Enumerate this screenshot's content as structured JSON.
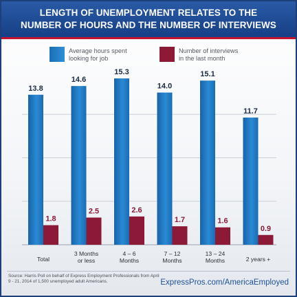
{
  "header": {
    "title_line1": "LENGTH OF UNEMPLOYMENT RELATES TO THE",
    "title_line2": "NUMBER OF HOURS AND THE NUMBER OF INTERVIEWS"
  },
  "legend": {
    "hours": "Average hours spent\nlooking for job",
    "interviews": "Number of interviews\nin the last month"
  },
  "colors": {
    "hours": "#1f78c1",
    "interviews": "#8c1a36",
    "hours_label": "#1a2a44",
    "interviews_label": "#8c1a36",
    "header": "#1d4a93",
    "accent_line": "#c41230"
  },
  "chart_data": {
    "type": "bar",
    "categories": [
      "Total",
      "3 Months\nor less",
      "4 – 6\nMonths",
      "7 – 12\nMonths",
      "13 – 24\nMonths",
      "2 years +"
    ],
    "series": [
      {
        "name": "Average hours spent looking for job",
        "values": [
          13.8,
          14.6,
          15.3,
          14.0,
          15.1,
          11.7
        ],
        "labels": [
          "13.8",
          "14.6",
          "15.3",
          "14.0",
          "15.1",
          "11.7"
        ]
      },
      {
        "name": "Number of interviews in the last month",
        "values": [
          1.8,
          2.5,
          2.6,
          1.7,
          1.6,
          0.9
        ],
        "labels": [
          "1.8",
          "2.5",
          "2.6",
          "1.7",
          "1.6",
          "0.9"
        ]
      }
    ],
    "ylim": [
      0,
      16
    ],
    "grid": true,
    "legend": "top"
  },
  "footer": {
    "source": "Source: Harris Poll on behalf of Express Employment Professionals from April 9 - 21, 2014 of 1,500 unemployed adult Americans.",
    "url": "ExpressPros.com/AmericaEmployed"
  }
}
